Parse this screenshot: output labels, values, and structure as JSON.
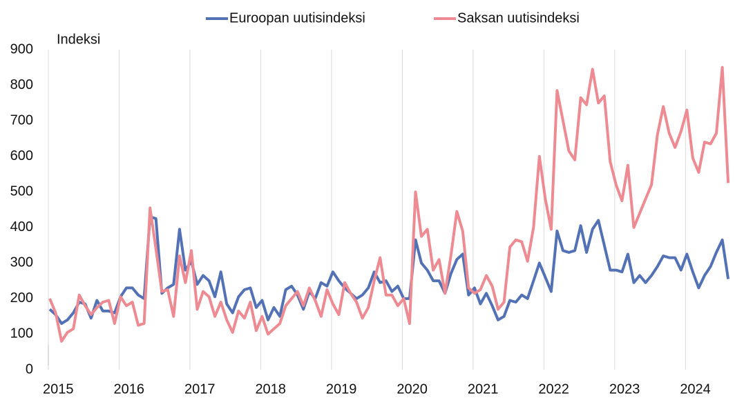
{
  "chart_data": {
    "type": "line",
    "y_label": "Indeksi",
    "categories": [
      "2015",
      null,
      null,
      null,
      null,
      null,
      null,
      null,
      null,
      null,
      null,
      null,
      "2016",
      null,
      null,
      null,
      null,
      null,
      null,
      null,
      null,
      null,
      null,
      null,
      "2017",
      null,
      null,
      null,
      null,
      null,
      null,
      null,
      null,
      null,
      null,
      null,
      "2018",
      null,
      null,
      null,
      null,
      null,
      null,
      null,
      null,
      null,
      null,
      null,
      "2019",
      null,
      null,
      null,
      null,
      null,
      null,
      null,
      null,
      null,
      null,
      null,
      "2020",
      null,
      null,
      null,
      null,
      null,
      null,
      null,
      null,
      null,
      null,
      null,
      "2021",
      null,
      null,
      null,
      null,
      null,
      null,
      null,
      null,
      null,
      null,
      null,
      "2022",
      null,
      null,
      null,
      null,
      null,
      null,
      null,
      null,
      null,
      null,
      null,
      "2023",
      null,
      null,
      null,
      null,
      null,
      null,
      null,
      null,
      null,
      null,
      null,
      "2024",
      null,
      null,
      null,
      null,
      null,
      null,
      null
    ],
    "series": [
      {
        "name": "Euroopan uutisindeksi",
        "color": "#5371b5",
        "values": [
          170,
          155,
          130,
          140,
          160,
          190,
          185,
          145,
          195,
          165,
          165,
          160,
          205,
          230,
          230,
          210,
          200,
          430,
          425,
          215,
          230,
          240,
          395,
          280,
          305,
          240,
          265,
          250,
          205,
          275,
          185,
          160,
          205,
          225,
          230,
          175,
          195,
          140,
          175,
          150,
          225,
          235,
          210,
          170,
          220,
          200,
          245,
          235,
          275,
          250,
          230,
          215,
          200,
          210,
          230,
          275,
          245,
          250,
          220,
          235,
          200,
          200,
          365,
          300,
          280,
          250,
          250,
          215,
          270,
          310,
          325,
          210,
          230,
          185,
          215,
          180,
          140,
          150,
          195,
          190,
          210,
          200,
          250,
          300,
          260,
          220,
          390,
          335,
          330,
          335,
          405,
          330,
          395,
          420,
          350,
          280,
          280,
          275,
          325,
          245,
          265,
          245,
          265,
          290,
          320,
          315,
          315,
          280,
          325,
          275,
          230,
          265,
          290,
          330,
          365,
          255
        ]
      },
      {
        "name": "Saksan uutisindeksi",
        "color": "#ee8a92",
        "values": [
          200,
          160,
          80,
          105,
          115,
          210,
          180,
          155,
          175,
          190,
          195,
          130,
          205,
          180,
          190,
          125,
          130,
          455,
          340,
          220,
          225,
          150,
          320,
          245,
          335,
          170,
          220,
          205,
          150,
          190,
          140,
          105,
          165,
          145,
          190,
          110,
          150,
          100,
          115,
          130,
          180,
          200,
          220,
          180,
          230,
          195,
          150,
          225,
          185,
          155,
          245,
          215,
          190,
          145,
          175,
          250,
          315,
          210,
          210,
          180,
          200,
          130,
          500,
          375,
          395,
          280,
          310,
          215,
          320,
          445,
          390,
          230,
          215,
          225,
          265,
          235,
          170,
          190,
          345,
          365,
          360,
          305,
          400,
          600,
          480,
          395,
          785,
          700,
          615,
          590,
          765,
          745,
          845,
          750,
          770,
          585,
          520,
          475,
          575,
          400,
          440,
          480,
          520,
          660,
          740,
          665,
          625,
          670,
          730,
          595,
          555,
          640,
          635,
          665,
          850,
          525
        ]
      }
    ],
    "ylim": [
      0,
      900
    ],
    "yticks": [
      0,
      100,
      200,
      300,
      400,
      500,
      600,
      700,
      800,
      900
    ],
    "grid": "x",
    "legend": "top"
  }
}
